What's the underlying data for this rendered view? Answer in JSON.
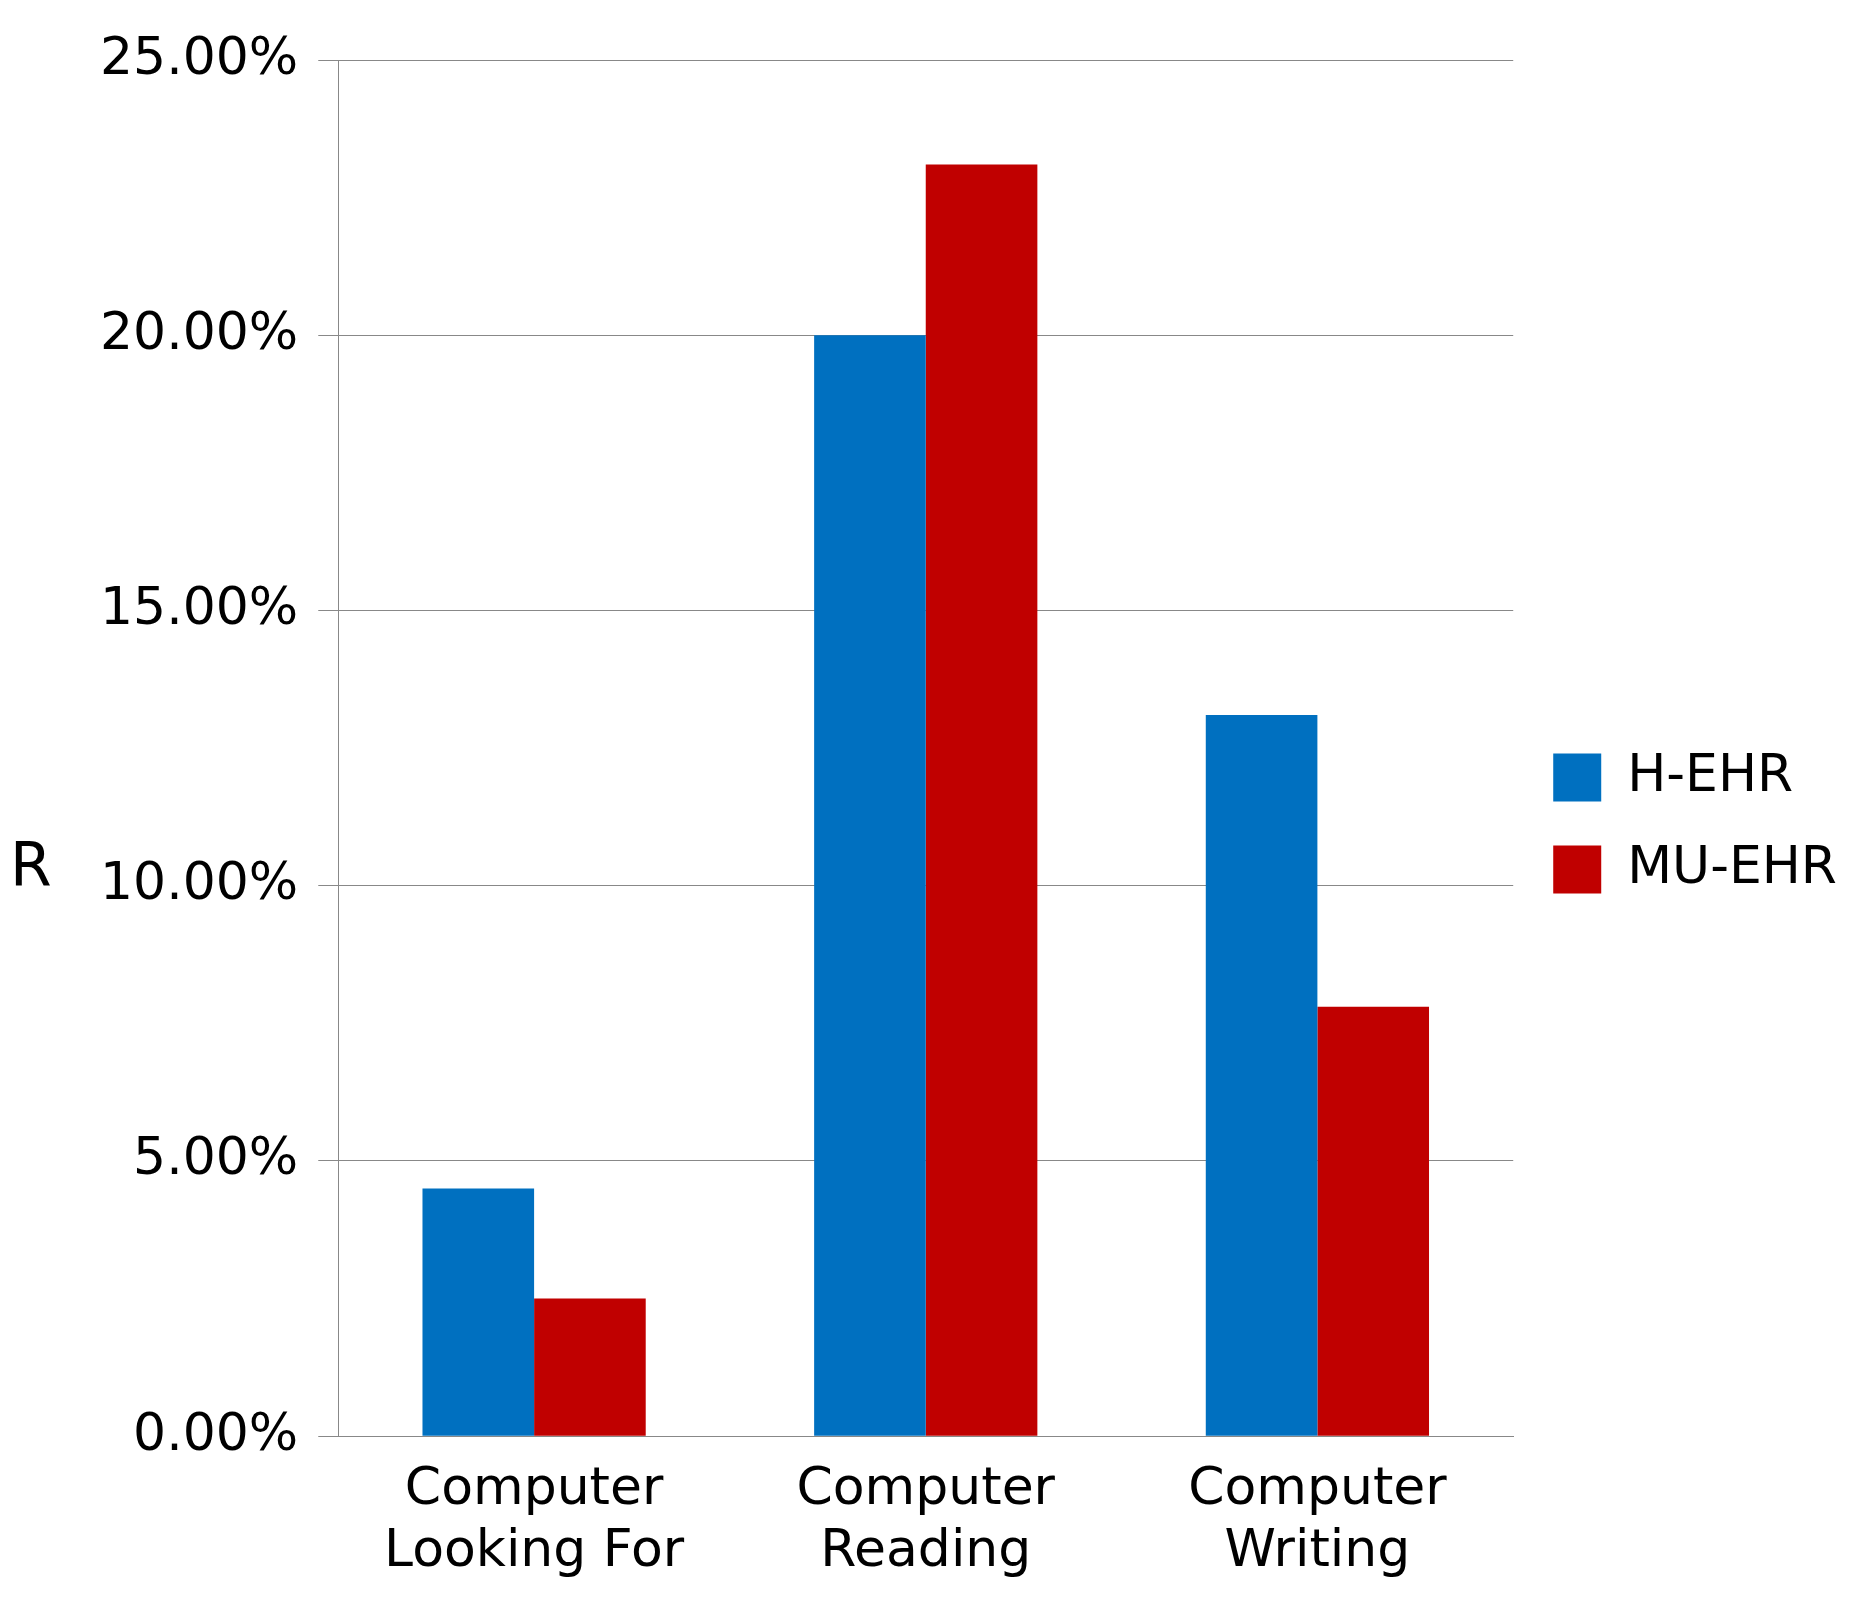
{
  "chart_data": {
    "type": "bar",
    "ylabel": "R",
    "categories": [
      "Computer\nLooking For",
      "Computer\nReading",
      "Computer\nWriting"
    ],
    "series": [
      {
        "name": "H-EHR",
        "color": "#0070c0",
        "values": [
          4.5,
          20.0,
          13.1
        ]
      },
      {
        "name": "MU-EHR",
        "color": "#c00000",
        "values": [
          2.5,
          23.1,
          7.8
        ]
      }
    ],
    "ylim": [
      0,
      25
    ],
    "yticks": [
      {
        "value": 0,
        "label": "0.00%"
      },
      {
        "value": 5,
        "label": "5.00%"
      },
      {
        "value": 10,
        "label": "10.00%"
      },
      {
        "value": 15,
        "label": "15.00%"
      },
      {
        "value": 20,
        "label": "20.00%"
      },
      {
        "value": 25,
        "label": "25.00%"
      }
    ],
    "grid": "y",
    "legend": "right"
  }
}
